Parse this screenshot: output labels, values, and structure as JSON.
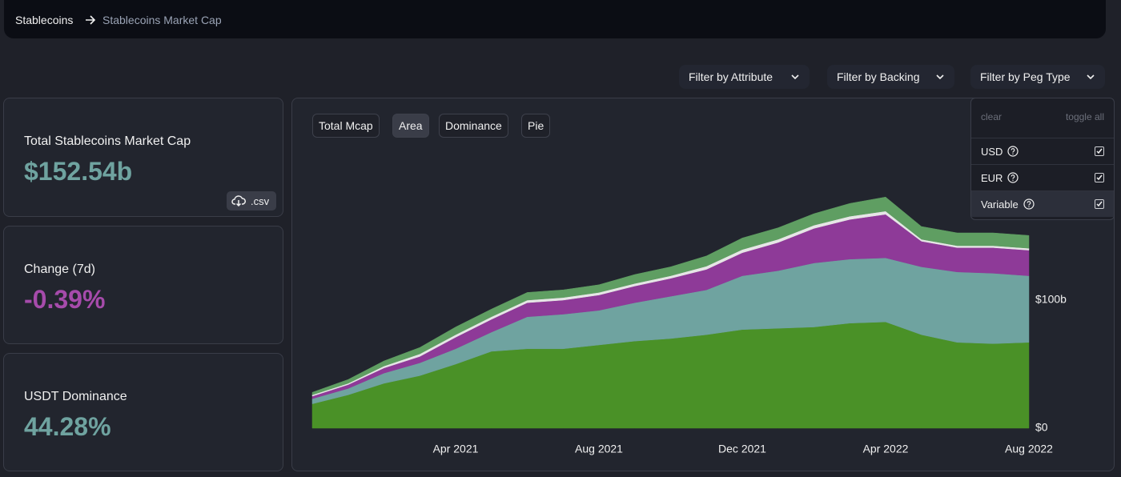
{
  "breadcrumb": [
    "Stablecoins",
    "Stablecoins Market Cap"
  ],
  "filters": [
    "Filter by Attribute",
    "Filter by Backing",
    "Filter by Peg Type"
  ],
  "peg_menu": {
    "clear": "clear",
    "toggle_all": "toggle all",
    "options": [
      {
        "label": "USD",
        "checked": true
      },
      {
        "label": "EUR",
        "checked": true
      },
      {
        "label": "Variable",
        "checked": true
      }
    ]
  },
  "stats": [
    {
      "label": "Total Stablecoins Market Cap",
      "value": "$152.54b",
      "color": "#6fa3a0"
    },
    {
      "label": "Change (7d)",
      "value": "-0.39%",
      "color": "#a64bab"
    },
    {
      "label": "USDT Dominance",
      "value": "44.28%",
      "color": "#6fa3a0"
    }
  ],
  "csv": ".csv",
  "tabs": [
    "Total Mcap",
    "Area",
    "Dominance",
    "Pie"
  ],
  "active_tab": "Area",
  "chart_data": {
    "type": "area",
    "stacked": true,
    "x": [
      "2020-12",
      "2021-01",
      "2021-02",
      "2021-03",
      "2021-04",
      "2021-05",
      "2021-06",
      "2021-07",
      "2021-08",
      "2021-09",
      "2021-10",
      "2021-11",
      "2021-12",
      "2022-01",
      "2022-02",
      "2022-03",
      "2022-04",
      "2022-05",
      "2022-06",
      "2022-07",
      "2022-08"
    ],
    "xlim": [
      "2020-12",
      "2022-08"
    ],
    "xticks": [
      {
        "value": "2021-04",
        "label": "Apr 2021"
      },
      {
        "value": "2021-08",
        "label": "Aug 2021"
      },
      {
        "value": "2021-12",
        "label": "Dec 2021"
      },
      {
        "value": "2022-04",
        "label": "Apr 2022"
      },
      {
        "value": "2022-08",
        "label": "Aug 2022"
      }
    ],
    "ylim": [
      0,
      215
    ],
    "yticks": [
      {
        "value": 0,
        "label": "$0"
      },
      {
        "value": 100,
        "label": "$100b"
      }
    ],
    "grid": false,
    "series": [
      {
        "color": "#4a9127",
        "values": [
          19,
          26,
          35,
          41,
          50,
          60,
          62,
          62,
          65,
          68,
          70,
          73,
          77,
          78,
          79,
          82,
          83,
          73,
          67,
          66,
          67
        ]
      },
      {
        "color": "#6fa3a0",
        "values": [
          4,
          5,
          8,
          10,
          12,
          15,
          25,
          27,
          27,
          30,
          33,
          35,
          42,
          45,
          50,
          50,
          50,
          53,
          55,
          55,
          52
        ]
      },
      {
        "color": "#8e3a98",
        "values": [
          2,
          3,
          4,
          5,
          9,
          10,
          11,
          11,
          12,
          13,
          14,
          16,
          18,
          22,
          27,
          31,
          34,
          20,
          19,
          20,
          20
        ]
      },
      {
        "color": "#e6e6e6",
        "values": [
          1,
          1,
          1.5,
          2,
          2,
          2,
          2,
          2,
          2,
          2,
          2,
          2.5,
          2.5,
          2.5,
          2.5,
          2.5,
          2.5,
          1.5,
          1.5,
          1.5,
          1.5
        ]
      },
      {
        "color": "#5f9e62",
        "values": [
          2,
          3,
          4,
          5,
          6,
          6,
          6,
          6,
          6,
          7,
          7,
          8,
          9,
          9,
          9,
          10,
          11,
          10,
          10,
          10,
          10
        ]
      }
    ]
  }
}
